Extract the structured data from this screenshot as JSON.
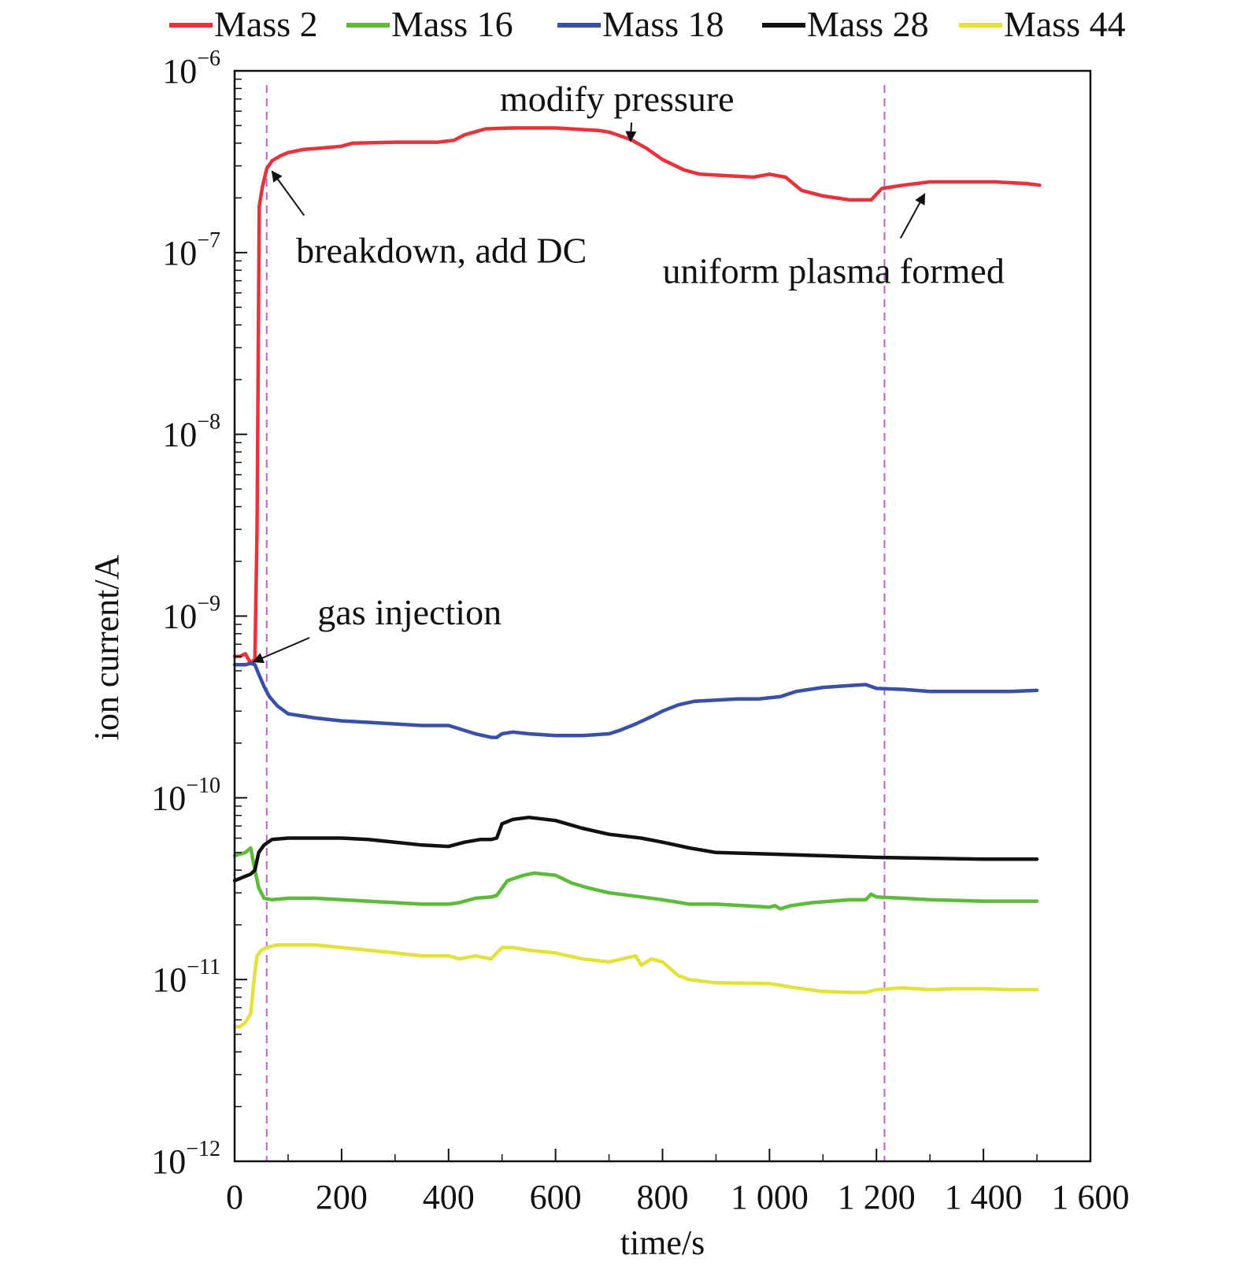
{
  "chart_data": {
    "type": "line",
    "xlabel": "time/s",
    "ylabel": "ion current/A",
    "xlim": [
      0,
      1600
    ],
    "ylim": [
      1e-12,
      1e-06
    ],
    "yscale": "log",
    "xticks": [
      {
        "value": 0,
        "label": "0"
      },
      {
        "value": 200,
        "label": "200"
      },
      {
        "value": 400,
        "label": "400"
      },
      {
        "value": 600,
        "label": "600"
      },
      {
        "value": 800,
        "label": "800"
      },
      {
        "value": 1000,
        "label": "1 000"
      },
      {
        "value": 1200,
        "label": "1 200"
      },
      {
        "value": 1400,
        "label": "1 400"
      },
      {
        "value": 1600,
        "label": "1 600"
      }
    ],
    "yticks": [
      {
        "value": 1e-06,
        "base": "10",
        "exp": "−6"
      },
      {
        "value": 1e-07,
        "base": "10",
        "exp": "−7"
      },
      {
        "value": 1e-08,
        "base": "10",
        "exp": "−8"
      },
      {
        "value": 1e-09,
        "base": "10",
        "exp": "−9"
      },
      {
        "value": 1e-10,
        "base": "10",
        "exp": "−10"
      },
      {
        "value": 1e-11,
        "base": "10",
        "exp": "−11"
      },
      {
        "value": 1e-12,
        "base": "10",
        "exp": "−12"
      }
    ],
    "legend_position": "top",
    "grid": false,
    "series": [
      {
        "name": "Mass 2",
        "color": "#e8323c",
        "x": [
          0,
          10,
          20,
          30,
          38,
          42,
          46,
          52,
          60,
          70,
          85,
          100,
          130,
          160,
          200,
          220,
          300,
          380,
          410,
          430,
          470,
          520,
          600,
          680,
          700,
          740,
          770,
          800,
          840,
          870,
          920,
          970,
          1000,
          1030,
          1060,
          1100,
          1150,
          1190,
          1210,
          1250,
          1300,
          1360,
          1420,
          1480,
          1505
        ],
        "y": [
          6e-10,
          6e-10,
          6.2e-10,
          5.5e-10,
          5.8e-10,
          3e-09,
          1.8e-07,
          2.3e-07,
          2.9e-07,
          3.2e-07,
          3.4e-07,
          3.55e-07,
          3.7e-07,
          3.75e-07,
          3.85e-07,
          4e-07,
          4.05e-07,
          4.05e-07,
          4.15e-07,
          4.45e-07,
          4.8e-07,
          4.85e-07,
          4.85e-07,
          4.7e-07,
          4.6e-07,
          4.2e-07,
          3.75e-07,
          3.25e-07,
          2.85e-07,
          2.7e-07,
          2.65e-07,
          2.6e-07,
          2.7e-07,
          2.6e-07,
          2.2e-07,
          2.05e-07,
          1.95e-07,
          1.95e-07,
          2.25e-07,
          2.35e-07,
          2.45e-07,
          2.45e-07,
          2.45e-07,
          2.4e-07,
          2.35e-07
        ]
      },
      {
        "name": "Mass 16",
        "color": "#5dbb3a",
        "x": [
          0,
          20,
          30,
          38,
          45,
          55,
          70,
          100,
          150,
          200,
          250,
          300,
          350,
          400,
          420,
          450,
          480,
          490,
          510,
          540,
          560,
          600,
          630,
          660,
          700,
          760,
          800,
          850,
          900,
          950,
          1000,
          1010,
          1020,
          1040,
          1080,
          1150,
          1180,
          1190,
          1200,
          1250,
          1300,
          1400,
          1500
        ],
        "y": [
          4.8e-11,
          5e-11,
          5.3e-11,
          4e-11,
          3.2e-11,
          2.8e-11,
          2.75e-11,
          2.8e-11,
          2.8e-11,
          2.75e-11,
          2.7e-11,
          2.65e-11,
          2.6e-11,
          2.6e-11,
          2.65e-11,
          2.8e-11,
          2.85e-11,
          2.9e-11,
          3.5e-11,
          3.75e-11,
          3.85e-11,
          3.75e-11,
          3.4e-11,
          3.2e-11,
          3e-11,
          2.85e-11,
          2.75e-11,
          2.6e-11,
          2.6e-11,
          2.55e-11,
          2.5e-11,
          2.55e-11,
          2.45e-11,
          2.55e-11,
          2.65e-11,
          2.75e-11,
          2.75e-11,
          2.95e-11,
          2.85e-11,
          2.8e-11,
          2.75e-11,
          2.7e-11,
          2.7e-11
        ]
      },
      {
        "name": "Mass 18",
        "color": "#3a50a8",
        "x": [
          0,
          20,
          30,
          38,
          45,
          55,
          65,
          80,
          100,
          150,
          200,
          250,
          300,
          350,
          400,
          420,
          450,
          480,
          490,
          500,
          520,
          550,
          600,
          650,
          700,
          720,
          750,
          780,
          800,
          830,
          860,
          900,
          940,
          980,
          1000,
          1020,
          1050,
          1100,
          1150,
          1180,
          1200,
          1250,
          1300,
          1350,
          1400,
          1450,
          1500
        ],
        "y": [
          5.4e-10,
          5.4e-10,
          5.5e-10,
          5.4e-10,
          4.8e-10,
          4.1e-10,
          3.6e-10,
          3.2e-10,
          2.9e-10,
          2.75e-10,
          2.65e-10,
          2.6e-10,
          2.55e-10,
          2.5e-10,
          2.5e-10,
          2.4e-10,
          2.25e-10,
          2.15e-10,
          2.15e-10,
          2.25e-10,
          2.3e-10,
          2.25e-10,
          2.2e-10,
          2.2e-10,
          2.25e-10,
          2.35e-10,
          2.55e-10,
          2.8e-10,
          3e-10,
          3.25e-10,
          3.4e-10,
          3.45e-10,
          3.5e-10,
          3.5e-10,
          3.55e-10,
          3.6e-10,
          3.85e-10,
          4.05e-10,
          4.15e-10,
          4.2e-10,
          4e-10,
          3.95e-10,
          3.85e-10,
          3.85e-10,
          3.85e-10,
          3.85e-10,
          3.9e-10
        ]
      },
      {
        "name": "Mass 28",
        "color": "#111111",
        "x": [
          0,
          20,
          30,
          38,
          45,
          55,
          70,
          100,
          150,
          200,
          250,
          300,
          350,
          400,
          430,
          460,
          480,
          490,
          500,
          520,
          550,
          600,
          650,
          700,
          760,
          800,
          850,
          900,
          1000,
          1100,
          1200,
          1300,
          1400,
          1500
        ],
        "y": [
          3.5e-11,
          3.7e-11,
          3.8e-11,
          4e-11,
          5e-11,
          5.5e-11,
          5.9e-11,
          6e-11,
          6e-11,
          6e-11,
          5.9e-11,
          5.7e-11,
          5.5e-11,
          5.4e-11,
          5.7e-11,
          5.9e-11,
          5.9e-11,
          6e-11,
          7.2e-11,
          7.6e-11,
          7.8e-11,
          7.5e-11,
          6.8e-11,
          6.3e-11,
          6e-11,
          5.7e-11,
          5.3e-11,
          5e-11,
          4.9e-11,
          4.8e-11,
          4.7e-11,
          4.65e-11,
          4.6e-11,
          4.6e-11
        ]
      },
      {
        "name": "Mass 44",
        "color": "#e2e23a",
        "x": [
          0,
          10,
          20,
          30,
          38,
          42,
          50,
          60,
          80,
          100,
          150,
          200,
          250,
          300,
          350,
          400,
          420,
          450,
          480,
          490,
          500,
          520,
          550,
          600,
          650,
          700,
          750,
          760,
          770,
          780,
          800,
          830,
          850,
          900,
          1000,
          1050,
          1100,
          1150,
          1180,
          1200,
          1250,
          1300,
          1350,
          1400,
          1450,
          1500
        ],
        "y": [
          5.5e-12,
          5.5e-12,
          5.8e-12,
          6.5e-12,
          1.1e-11,
          1.35e-11,
          1.45e-11,
          1.5e-11,
          1.55e-11,
          1.55e-11,
          1.55e-11,
          1.5e-11,
          1.45e-11,
          1.4e-11,
          1.35e-11,
          1.35e-11,
          1.3e-11,
          1.35e-11,
          1.3e-11,
          1.4e-11,
          1.5e-11,
          1.5e-11,
          1.45e-11,
          1.4e-11,
          1.3e-11,
          1.25e-11,
          1.35e-11,
          1.2e-11,
          1.25e-11,
          1.3e-11,
          1.25e-11,
          1.05e-11,
          1e-11,
          9.6e-12,
          9.5e-12,
          9e-12,
          8.6e-12,
          8.5e-12,
          8.5e-12,
          8.8e-12,
          9e-12,
          8.8e-12,
          8.9e-12,
          8.9e-12,
          8.8e-12,
          8.8e-12
        ]
      }
    ],
    "vlines": [
      {
        "x": 60,
        "color": "#c060c8"
      },
      {
        "x": 1215,
        "color": "#c060c8"
      }
    ],
    "annotations": [
      {
        "text": "modify pressure",
        "text_x": 715,
        "text_y": 6e-07,
        "anchor": "middle",
        "arrow_from": [
          742,
          5.2e-07
        ],
        "arrow_to": [
          740,
          4.1e-07
        ]
      },
      {
        "text": "breakdown, add DC",
        "text_x": 115,
        "text_y": 8.8e-08,
        "anchor": "start",
        "arrow_from": [
          130,
          1.6e-07
        ],
        "arrow_to": [
          70,
          2.8e-07
        ]
      },
      {
        "text": "uniform plasma formed",
        "text_x": 800,
        "text_y": 6.8e-08,
        "anchor": "start",
        "arrow_from": [
          1245,
          1.2e-07
        ],
        "arrow_to": [
          1290,
          2.1e-07
        ]
      },
      {
        "text": "gas injection",
        "text_x": 155,
        "text_y": 9e-10,
        "anchor": "start",
        "arrow_from": [
          140,
          7.6e-10
        ],
        "arrow_to": [
          35,
          5.6e-10
        ]
      }
    ]
  }
}
